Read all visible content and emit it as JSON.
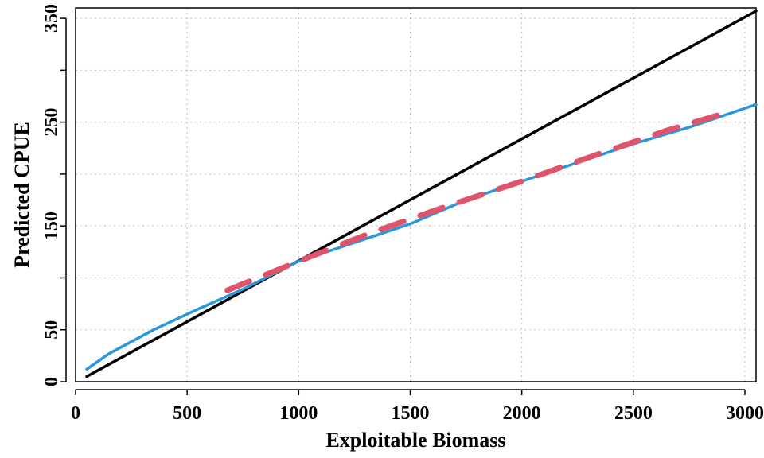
{
  "chart_data": {
    "type": "line",
    "title": "",
    "xlabel": "Exploitable Biomass",
    "ylabel": "Predicted CPUE",
    "xlim": [
      0,
      3050
    ],
    "ylim": [
      0,
      360
    ],
    "x_ticks": [
      0,
      500,
      1000,
      1500,
      2000,
      2500,
      3000
    ],
    "y_ticks": [
      0,
      50,
      150,
      250,
      350
    ],
    "y_gridlines": [
      0,
      50,
      100,
      150,
      200,
      250,
      300,
      350
    ],
    "x_gridlines": [
      0,
      500,
      1000,
      1500,
      2000,
      2500,
      3000
    ],
    "grid": true,
    "colors": {
      "linear": "#000000",
      "power": "#2a96dc",
      "dashed": "#df536b",
      "grid": "#bfbfbf"
    },
    "series": [
      {
        "style": "solid-black",
        "x": [
          50,
          3050
        ],
        "y": [
          5,
          357
        ]
      },
      {
        "style": "solid-blue",
        "x": [
          50,
          150,
          350,
          550,
          750,
          1000,
          1250,
          1500,
          1750,
          2000,
          2250,
          2500,
          2750,
          3050
        ],
        "y": [
          12,
          27,
          50,
          70,
          89,
          116,
          134,
          152,
          175,
          193,
          211,
          229,
          245,
          267
        ]
      },
      {
        "style": "dashed-red",
        "x": [
          680,
          1000,
          1320,
          1650,
          2000,
          2300,
          2650,
          2900
        ],
        "y": [
          88,
          116,
          143,
          168,
          193,
          216,
          242,
          258
        ]
      }
    ]
  }
}
